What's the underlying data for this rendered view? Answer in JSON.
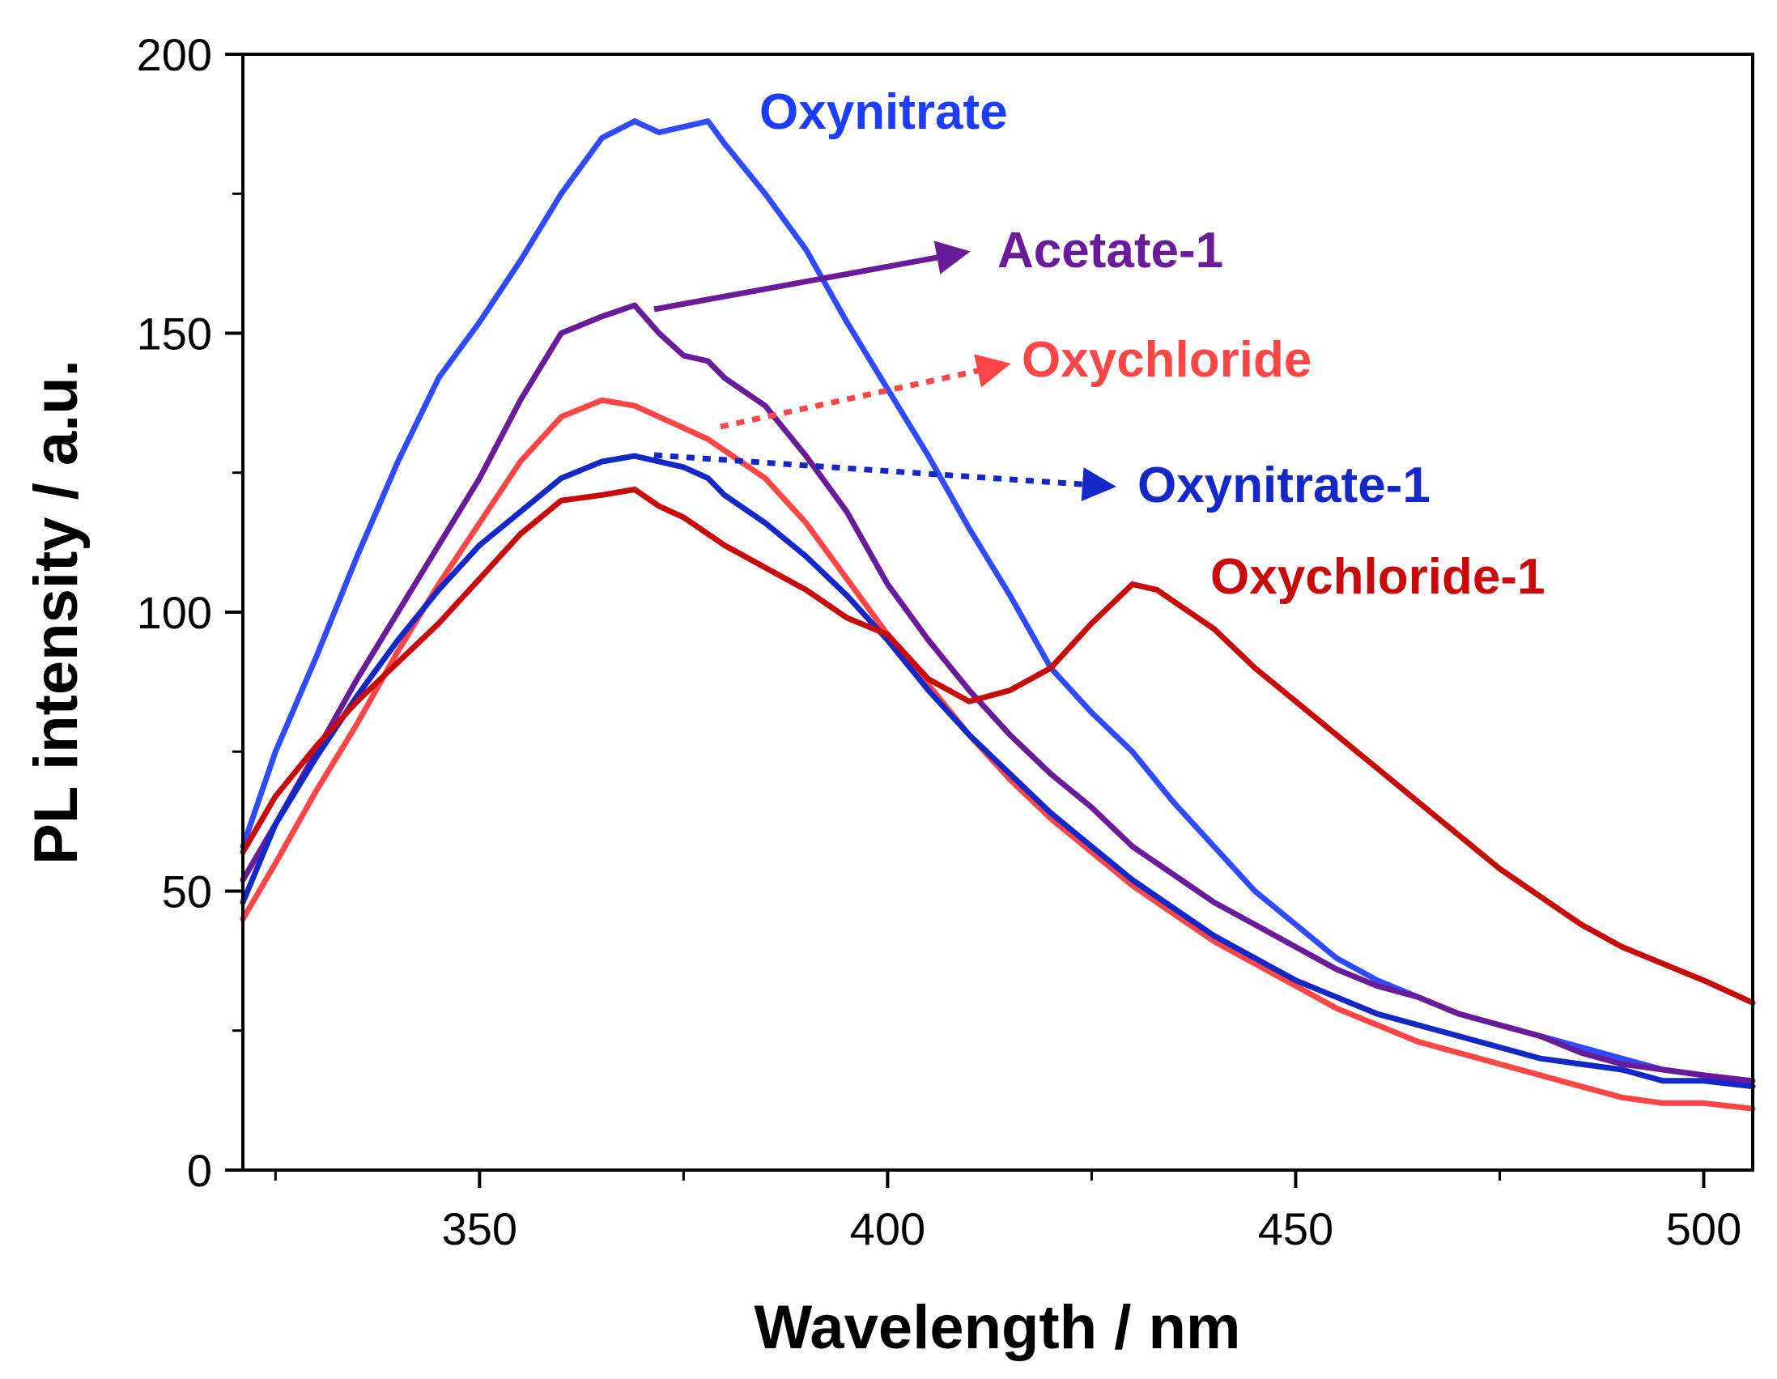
{
  "chart_data": {
    "type": "line",
    "title": "",
    "xlabel": "Wavelength / nm",
    "ylabel": "PL intensity / a.u.",
    "xlim": [
      321,
      506
    ],
    "ylim": [
      0,
      200
    ],
    "xticks": [
      350,
      400,
      450,
      500
    ],
    "xminor": [
      325,
      375,
      425,
      475,
      500
    ],
    "yticks": [
      0,
      50,
      100,
      150,
      200
    ],
    "yminor": [
      25,
      75,
      125,
      175
    ],
    "grid": false,
    "series": [
      {
        "name": "Oxynitrate",
        "color": "#2f4bff",
        "x": [
          321,
          325,
          330,
          335,
          340,
          345,
          350,
          355,
          360,
          365,
          369,
          372,
          375,
          378,
          380,
          385,
          390,
          395,
          400,
          405,
          410,
          415,
          420,
          425,
          430,
          435,
          440,
          445,
          450,
          455,
          460,
          465,
          470,
          475,
          480,
          485,
          490,
          495,
          500,
          506
        ],
        "y": [
          58,
          75,
          92,
          110,
          127,
          142,
          152,
          163,
          175,
          185,
          188,
          186,
          187,
          188,
          184,
          175,
          165,
          152,
          140,
          128,
          115,
          103,
          90,
          82,
          75,
          66,
          58,
          50,
          44,
          38,
          34,
          31,
          28,
          26,
          24,
          22,
          20,
          18,
          17,
          15
        ]
      },
      {
        "name": "Acetate-1",
        "color": "#6a1b9a",
        "x": [
          321,
          325,
          330,
          335,
          340,
          345,
          350,
          355,
          360,
          365,
          369,
          372,
          375,
          378,
          380,
          385,
          390,
          395,
          400,
          405,
          410,
          415,
          420,
          425,
          430,
          435,
          440,
          445,
          450,
          455,
          460,
          465,
          470,
          475,
          480,
          485,
          490,
          495,
          500,
          506
        ],
        "y": [
          52,
          62,
          75,
          88,
          100,
          112,
          124,
          138,
          150,
          153,
          155,
          150,
          146,
          145,
          142,
          137,
          128,
          118,
          105,
          95,
          86,
          78,
          71,
          65,
          58,
          53,
          48,
          44,
          40,
          36,
          33,
          31,
          28,
          26,
          24,
          21,
          19,
          18,
          17,
          16
        ]
      },
      {
        "name": "Oxychloride",
        "color": "#ff4545",
        "x": [
          321,
          325,
          330,
          335,
          340,
          345,
          350,
          355,
          360,
          365,
          369,
          372,
          375,
          378,
          380,
          385,
          390,
          395,
          400,
          405,
          410,
          415,
          420,
          425,
          430,
          435,
          440,
          445,
          450,
          455,
          460,
          465,
          470,
          475,
          480,
          485,
          490,
          495,
          500,
          506
        ],
        "y": [
          45,
          55,
          68,
          80,
          93,
          105,
          116,
          127,
          135,
          138,
          137,
          135,
          133,
          131,
          129,
          124,
          116,
          106,
          96,
          87,
          78,
          70,
          63,
          57,
          51,
          46,
          41,
          37,
          33,
          29,
          26,
          23,
          21,
          19,
          17,
          15,
          13,
          12,
          12,
          11
        ]
      },
      {
        "name": "Oxynitrate-1",
        "color": "#1428c8",
        "x": [
          321,
          325,
          330,
          335,
          340,
          345,
          350,
          355,
          360,
          365,
          369,
          372,
          375,
          378,
          380,
          385,
          390,
          395,
          400,
          405,
          410,
          415,
          420,
          425,
          430,
          435,
          440,
          445,
          450,
          455,
          460,
          465,
          470,
          475,
          480,
          485,
          490,
          495,
          500,
          506
        ],
        "y": [
          48,
          62,
          74,
          85,
          95,
          104,
          112,
          118,
          124,
          127,
          128,
          127,
          126,
          124,
          121,
          116,
          110,
          103,
          95,
          86,
          78,
          71,
          64,
          58,
          52,
          47,
          42,
          38,
          34,
          31,
          28,
          26,
          24,
          22,
          20,
          19,
          18,
          16,
          16,
          15
        ]
      },
      {
        "name": "Oxychloride-1",
        "color": "#c80a0a",
        "x": [
          321,
          325,
          330,
          335,
          340,
          345,
          350,
          355,
          360,
          365,
          369,
          372,
          375,
          378,
          380,
          385,
          390,
          395,
          400,
          405,
          410,
          415,
          420,
          425,
          430,
          433,
          435,
          440,
          445,
          450,
          455,
          460,
          465,
          470,
          475,
          480,
          485,
          490,
          495,
          500,
          506
        ],
        "y": [
          57,
          67,
          76,
          84,
          91,
          98,
          106,
          114,
          120,
          121,
          122,
          119,
          117,
          114,
          112,
          108,
          104,
          99,
          96,
          88,
          84,
          86,
          90,
          98,
          105,
          104,
          102,
          97,
          90,
          84,
          78,
          72,
          66,
          60,
          54,
          49,
          44,
          40,
          37,
          34,
          30
        ]
      }
    ],
    "annotations": [
      {
        "label": "Oxynitrate",
        "color": "#1c3cff"
      },
      {
        "label": "Acetate-1",
        "color": "#6a1b9a",
        "arrow": "solid"
      },
      {
        "label": "Oxychloride",
        "color": "#ff4545",
        "arrow": "dotted"
      },
      {
        "label": "Oxynitrate-1",
        "color": "#1428c8",
        "arrow": "dotted"
      },
      {
        "label": "Oxychloride-1",
        "color": "#c80a0a"
      }
    ]
  }
}
